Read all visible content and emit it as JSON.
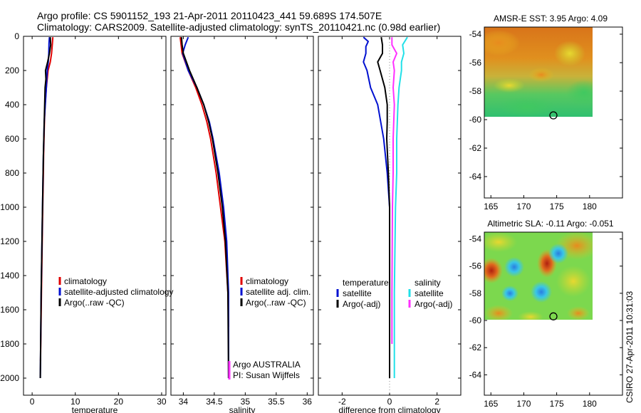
{
  "header": {
    "line1": "Argo profile: CS 5901152_193 21-Apr-2011 20110423_441 59.689S 174.507E",
    "line2": "Climatology: CARS2009. Satellite-adjusted climatology: synTS_20110421.nc (0.98d earlier)"
  },
  "side_label": "CSIRO 27-Apr-2011 10:31:03",
  "colors": {
    "climatology": "#e00000",
    "satellite": "#0010d0",
    "argo": "#000000",
    "sal_satellite": "#20e0e8",
    "sal_argo": "#ff30ff"
  },
  "chart_data": [
    {
      "type": "line",
      "panel": "temperature",
      "xlabel": "temperature",
      "xlim": [
        -2,
        31
      ],
      "xticks": [
        0,
        10,
        20,
        30
      ],
      "ylim": [
        2100,
        0
      ],
      "yticks": [
        0,
        200,
        400,
        600,
        800,
        1000,
        1200,
        1400,
        1600,
        1800,
        2000
      ],
      "legend": [
        "climatology",
        "satellite-adjusted climatology",
        "Argo(..raw -QC)"
      ],
      "series": [
        {
          "name": "climatology",
          "color_key": "climatology",
          "depth": [
            5,
            40,
            100,
            150,
            200,
            300,
            400,
            500,
            600,
            700,
            800,
            1000,
            1500,
            1900
          ],
          "values": [
            4.8,
            4.7,
            4.5,
            4.2,
            3.7,
            3.3,
            3.0,
            2.85,
            2.75,
            2.65,
            2.6,
            2.45,
            2.15,
            1.95
          ]
        },
        {
          "name": "satellite-adjusted climatology",
          "color_key": "satellite",
          "depth": [
            5,
            40,
            100,
            150,
            200,
            300,
            400,
            500,
            700,
            1000,
            1500,
            2000
          ],
          "values": [
            4.0,
            3.9,
            3.85,
            3.75,
            3.5,
            3.3,
            3.05,
            2.8,
            2.6,
            2.4,
            2.1,
            1.9
          ]
        },
        {
          "name": "Argo(..raw -QC)",
          "color_key": "argo",
          "depth": [
            5,
            50,
            100,
            150,
            200,
            250,
            300,
            400,
            500,
            700,
            1000,
            1500,
            2000
          ],
          "values": [
            4.2,
            4.3,
            4.0,
            3.6,
            3.1,
            3.2,
            3.0,
            2.9,
            2.8,
            2.6,
            2.4,
            2.1,
            1.9
          ]
        }
      ]
    },
    {
      "type": "line",
      "panel": "salinity",
      "xlabel": "salinity",
      "xlim": [
        33.8,
        36.1
      ],
      "xticks": [
        34,
        34.5,
        35,
        35.5,
        36
      ],
      "ylim": [
        2100,
        0
      ],
      "legend": [
        "climatology",
        "satellite adj. clim.",
        "Argo(..raw -QC)"
      ],
      "annotations": [
        "Argo AUSTRALIA",
        "PI: Susan Wijffels"
      ],
      "series": [
        {
          "name": "climatology",
          "color_key": "climatology",
          "depth": [
            5,
            100,
            200,
            300,
            400,
            500,
            600,
            800,
            1000,
            1200,
            1500,
            1700
          ],
          "values": [
            33.95,
            33.98,
            34.08,
            34.2,
            34.3,
            34.38,
            34.44,
            34.53,
            34.6,
            34.67,
            34.72,
            34.73
          ]
        },
        {
          "name": "satellite adj. clim.",
          "color_key": "satellite",
          "depth": [
            5,
            50,
            100,
            200,
            300,
            400,
            500,
            600,
            800,
            1000,
            1200,
            1500,
            2000
          ],
          "values": [
            34.08,
            34.03,
            33.99,
            34.08,
            34.22,
            34.33,
            34.42,
            34.48,
            34.58,
            34.65,
            34.7,
            34.73,
            34.73
          ]
        },
        {
          "name": "Argo(..raw -QC)",
          "color_key": "argo",
          "depth": [
            5,
            50,
            100,
            200,
            300,
            400,
            500,
            600,
            800,
            1000,
            1200,
            1500,
            2000
          ],
          "values": [
            33.97,
            33.98,
            34.0,
            34.1,
            34.22,
            34.33,
            34.41,
            34.47,
            34.56,
            34.63,
            34.68,
            34.72,
            34.73
          ]
        }
      ]
    },
    {
      "type": "line",
      "panel": "difference",
      "xlabel": "difference from climatology",
      "xlim": [
        -3,
        3
      ],
      "xticks": [
        -2,
        0,
        2
      ],
      "ylim": [
        2100,
        0
      ],
      "legend_temperature": {
        "title": "temperature",
        "items": [
          "satellite",
          "Argo(-adj)"
        ]
      },
      "legend_salinity": {
        "title": "salinity",
        "items": [
          "satellite",
          "Argo(-adj)"
        ]
      },
      "series": [
        {
          "name": "temperature satellite",
          "color_key": "satellite",
          "depth": [
            5,
            30,
            60,
            100,
            150,
            200,
            300,
            400,
            600,
            800,
            1000,
            1500,
            2000
          ],
          "values": [
            -1.1,
            -0.9,
            -1.0,
            -1.0,
            -1.1,
            -0.95,
            -0.8,
            -0.5,
            -0.25,
            -0.1,
            0.0,
            0.0,
            0.0
          ]
        },
        {
          "name": "temperature Argo(-adj)",
          "color_key": "argo",
          "depth": [
            5,
            50,
            100,
            150,
            200,
            250,
            300,
            400,
            500,
            600,
            800,
            1000,
            1500,
            2000
          ],
          "values": [
            -0.35,
            -0.3,
            -0.3,
            -0.5,
            -0.4,
            -0.3,
            -0.2,
            -0.1,
            -0.1,
            -0.12,
            -0.05,
            0.0,
            0.0,
            0.0
          ]
        },
        {
          "name": "salinity satellite",
          "color_key": "sal_satellite",
          "depth": [
            5,
            50,
            100,
            150,
            200,
            300,
            400,
            600,
            800,
            1000,
            1500,
            2000
          ],
          "values": [
            0.75,
            0.55,
            0.6,
            0.5,
            0.5,
            0.4,
            0.35,
            0.3,
            0.3,
            0.25,
            0.2,
            0.2
          ]
        },
        {
          "name": "salinity Argo(-adj)",
          "color_key": "sal_argo",
          "depth": [
            5,
            50,
            100,
            150,
            200,
            300,
            400,
            600,
            800,
            1000,
            1500,
            1800
          ],
          "values": [
            0.1,
            0.1,
            0.3,
            0.15,
            0.2,
            0.15,
            0.2,
            0.15,
            0.15,
            0.12,
            0.1,
            0.1
          ]
        }
      ]
    },
    {
      "type": "heatmap",
      "panel": "amsr_sst",
      "title": "AMSR-E SST: 3.95  Argo: 4.09",
      "xlim": [
        164,
        185
      ],
      "ylim": [
        -65.5,
        -53.5
      ],
      "xticks": [
        165,
        170,
        175,
        180
      ],
      "yticks": [
        -54,
        -56,
        -58,
        -60,
        -62,
        -64
      ],
      "data_extent": {
        "lon": [
          164,
          180
        ],
        "lat": [
          -60,
          -53.5
        ]
      },
      "marker": {
        "lon": 174.5,
        "lat": -59.7
      }
    },
    {
      "type": "heatmap",
      "panel": "altimetric_sla",
      "title": "Altimetric SLA: -0.11  Argo: -0.051",
      "xlim": [
        164,
        185
      ],
      "ylim": [
        -65.5,
        -53.5
      ],
      "xticks": [
        165,
        170,
        175,
        180
      ],
      "yticks": [
        -54,
        -56,
        -58,
        -60,
        -62,
        -64
      ],
      "data_extent": {
        "lon": [
          164,
          180
        ],
        "lat": [
          -60,
          -53.5
        ]
      },
      "marker": {
        "lon": 174.5,
        "lat": -59.7
      }
    }
  ]
}
